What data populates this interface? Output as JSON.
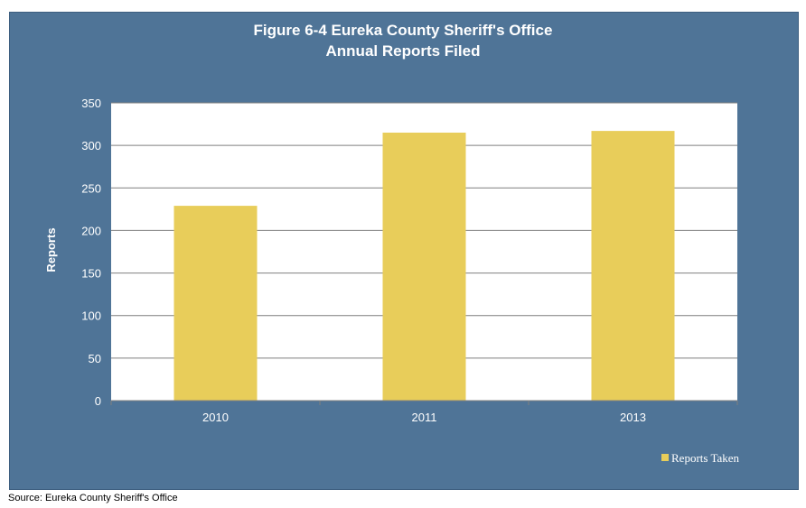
{
  "chart_data": {
    "type": "bar",
    "title": "Figure 6-4 Eureka County Sheriff's Office",
    "subtitle": "Annual Reports Filed",
    "categories": [
      "2010",
      "2011",
      "2013"
    ],
    "series": [
      {
        "name": "Reports Taken",
        "values": [
          229,
          315,
          317
        ],
        "color": "#e8cd5a"
      }
    ],
    "xlabel": "",
    "ylabel": "Reports",
    "ylim": [
      0,
      350
    ],
    "yticks": [
      0,
      50,
      100,
      150,
      200,
      250,
      300,
      350
    ],
    "grid": true,
    "legend": "bottom-right"
  },
  "colors": {
    "frame_background": "#4f7497",
    "plot_background": "#ffffff",
    "gridline": "#7f7f7f",
    "text": "#ffffff"
  },
  "footer": {
    "source": "Source: Eureka County Sheriff's Office"
  }
}
